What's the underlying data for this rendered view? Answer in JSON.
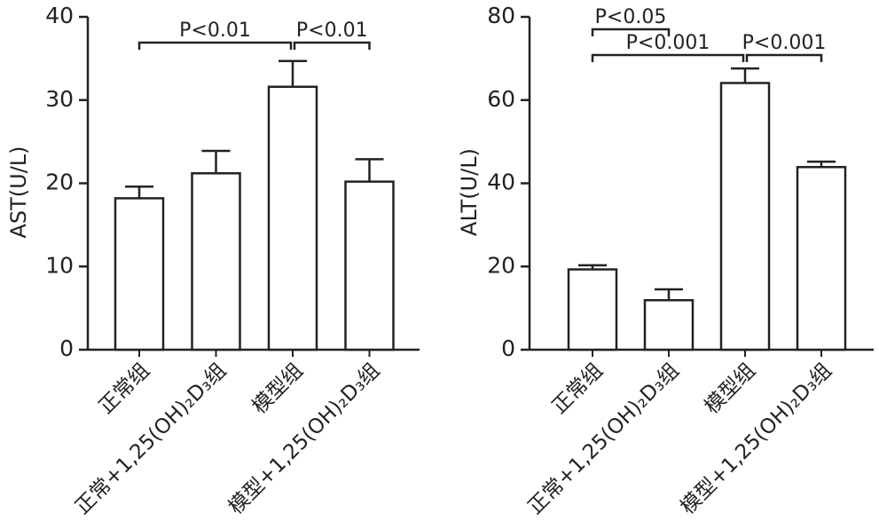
{
  "chart_data": [
    {
      "type": "bar",
      "y_label": "AST(U/L)",
      "categories": [
        "正常组",
        "正常+1,25(OH)₂D₃组",
        "模型组",
        "模型+1,25(OH)₂D₃组"
      ],
      "values": [
        18.2,
        21.2,
        31.6,
        20.2
      ],
      "errors": [
        1.4,
        2.7,
        3.1,
        2.7
      ],
      "color": "#ffffff",
      "edge_color": "#222222",
      "ylim": [
        0,
        40
      ],
      "yticks": [
        0,
        10,
        20,
        30,
        40
      ],
      "annotations": [
        "P<0.01",
        "P<0.01"
      ]
    },
    {
      "type": "bar",
      "y_label": "ALT(U/L)",
      "categories": [
        "正常组",
        "正常+1,25(OH)₂D₃组",
        "模型组",
        "模型+1,25(OH)₂D₃组"
      ],
      "values": [
        19.3,
        11.9,
        64.1,
        43.9
      ],
      "errors": [
        1.0,
        2.6,
        3.5,
        1.3
      ],
      "color": "#ffffff",
      "edge_color": "#222222",
      "ylim": [
        0,
        80
      ],
      "yticks": [
        0,
        20,
        40,
        60,
        80
      ],
      "annotations": [
        "P<0.05",
        "P<0.001",
        "P<0.001"
      ]
    }
  ]
}
